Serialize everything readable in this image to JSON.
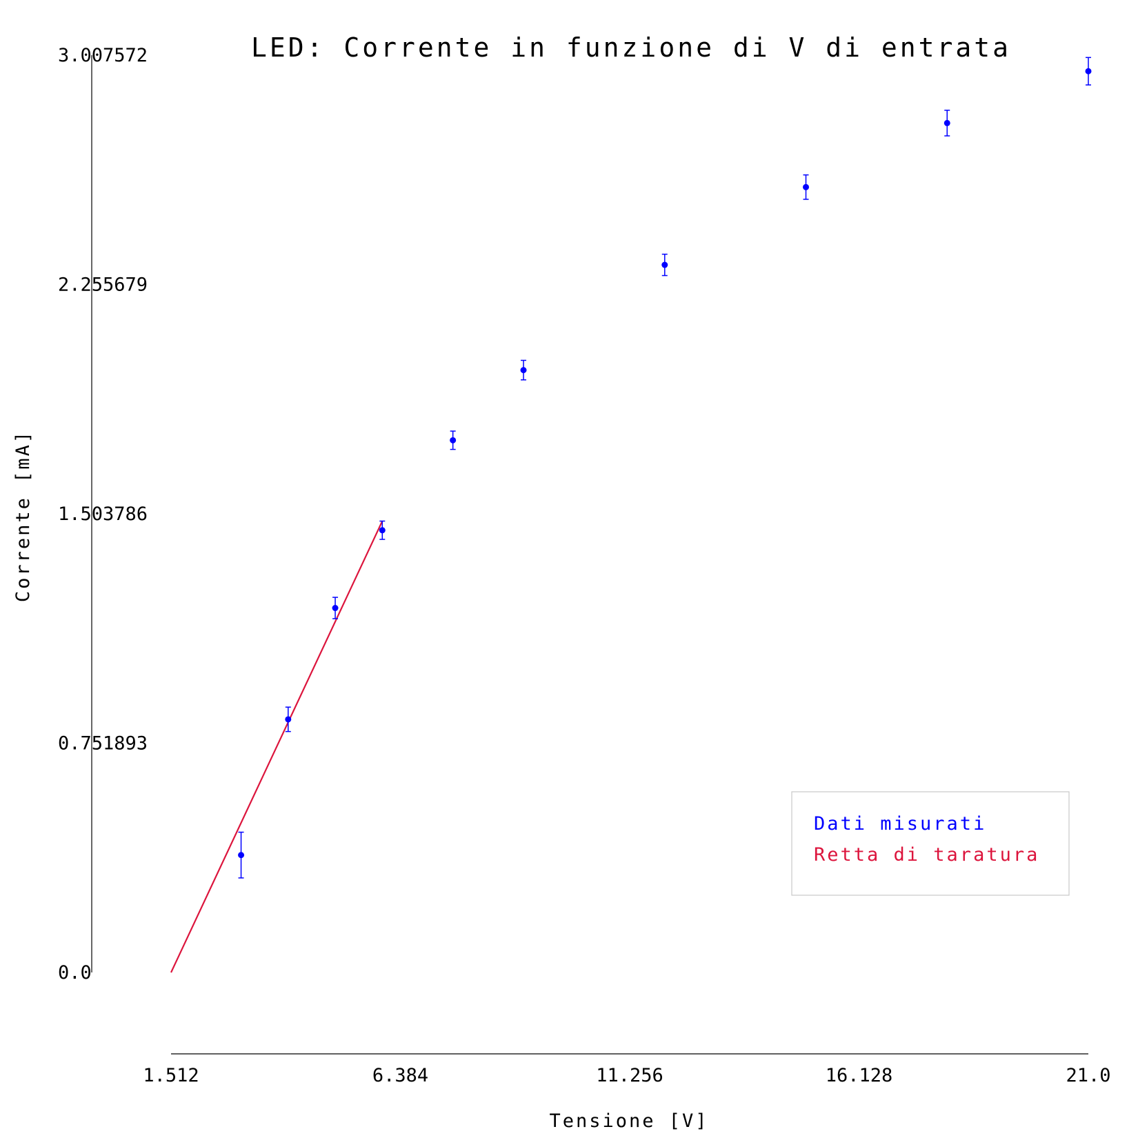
{
  "chart_data": {
    "type": "scatter",
    "title": "LED: Corrente in funzione di V di entrata",
    "xlabel": "Tensione [V]",
    "ylabel": "Corrente [mA]",
    "xlim": [
      1.512,
      21.0
    ],
    "ylim": [
      0.0,
      3.007572
    ],
    "x_ticks": [
      "1.512",
      "6.384",
      "11.256",
      "16.128",
      "21.0"
    ],
    "y_ticks": [
      "0.0",
      "0.751893",
      "1.503786",
      "2.255679",
      "3.007572"
    ],
    "grid": false,
    "legend_position": "bottom-right",
    "series": [
      {
        "name": "Dati misurati",
        "kind": "points_with_error_bars",
        "color": "#0000ff",
        "points": [
          {
            "x": 3.0,
            "y": 0.385,
            "err": 0.075
          },
          {
            "x": 4.0,
            "y": 0.83,
            "err": 0.04
          },
          {
            "x": 5.0,
            "y": 1.195,
            "err": 0.035
          },
          {
            "x": 6.0,
            "y": 1.45,
            "err": 0.03
          },
          {
            "x": 7.5,
            "y": 1.745,
            "err": 0.03
          },
          {
            "x": 9.0,
            "y": 1.975,
            "err": 0.032
          },
          {
            "x": 12.0,
            "y": 2.32,
            "err": 0.035
          },
          {
            "x": 15.0,
            "y": 2.575,
            "err": 0.04
          },
          {
            "x": 18.0,
            "y": 2.785,
            "err": 0.042
          },
          {
            "x": 21.0,
            "y": 2.955,
            "err": 0.045
          }
        ]
      },
      {
        "name": "Retta di taratura",
        "kind": "line",
        "color": "#dc143c",
        "x": [
          1.512,
          6.0
        ],
        "y": [
          0.0,
          1.48
        ]
      }
    ]
  }
}
